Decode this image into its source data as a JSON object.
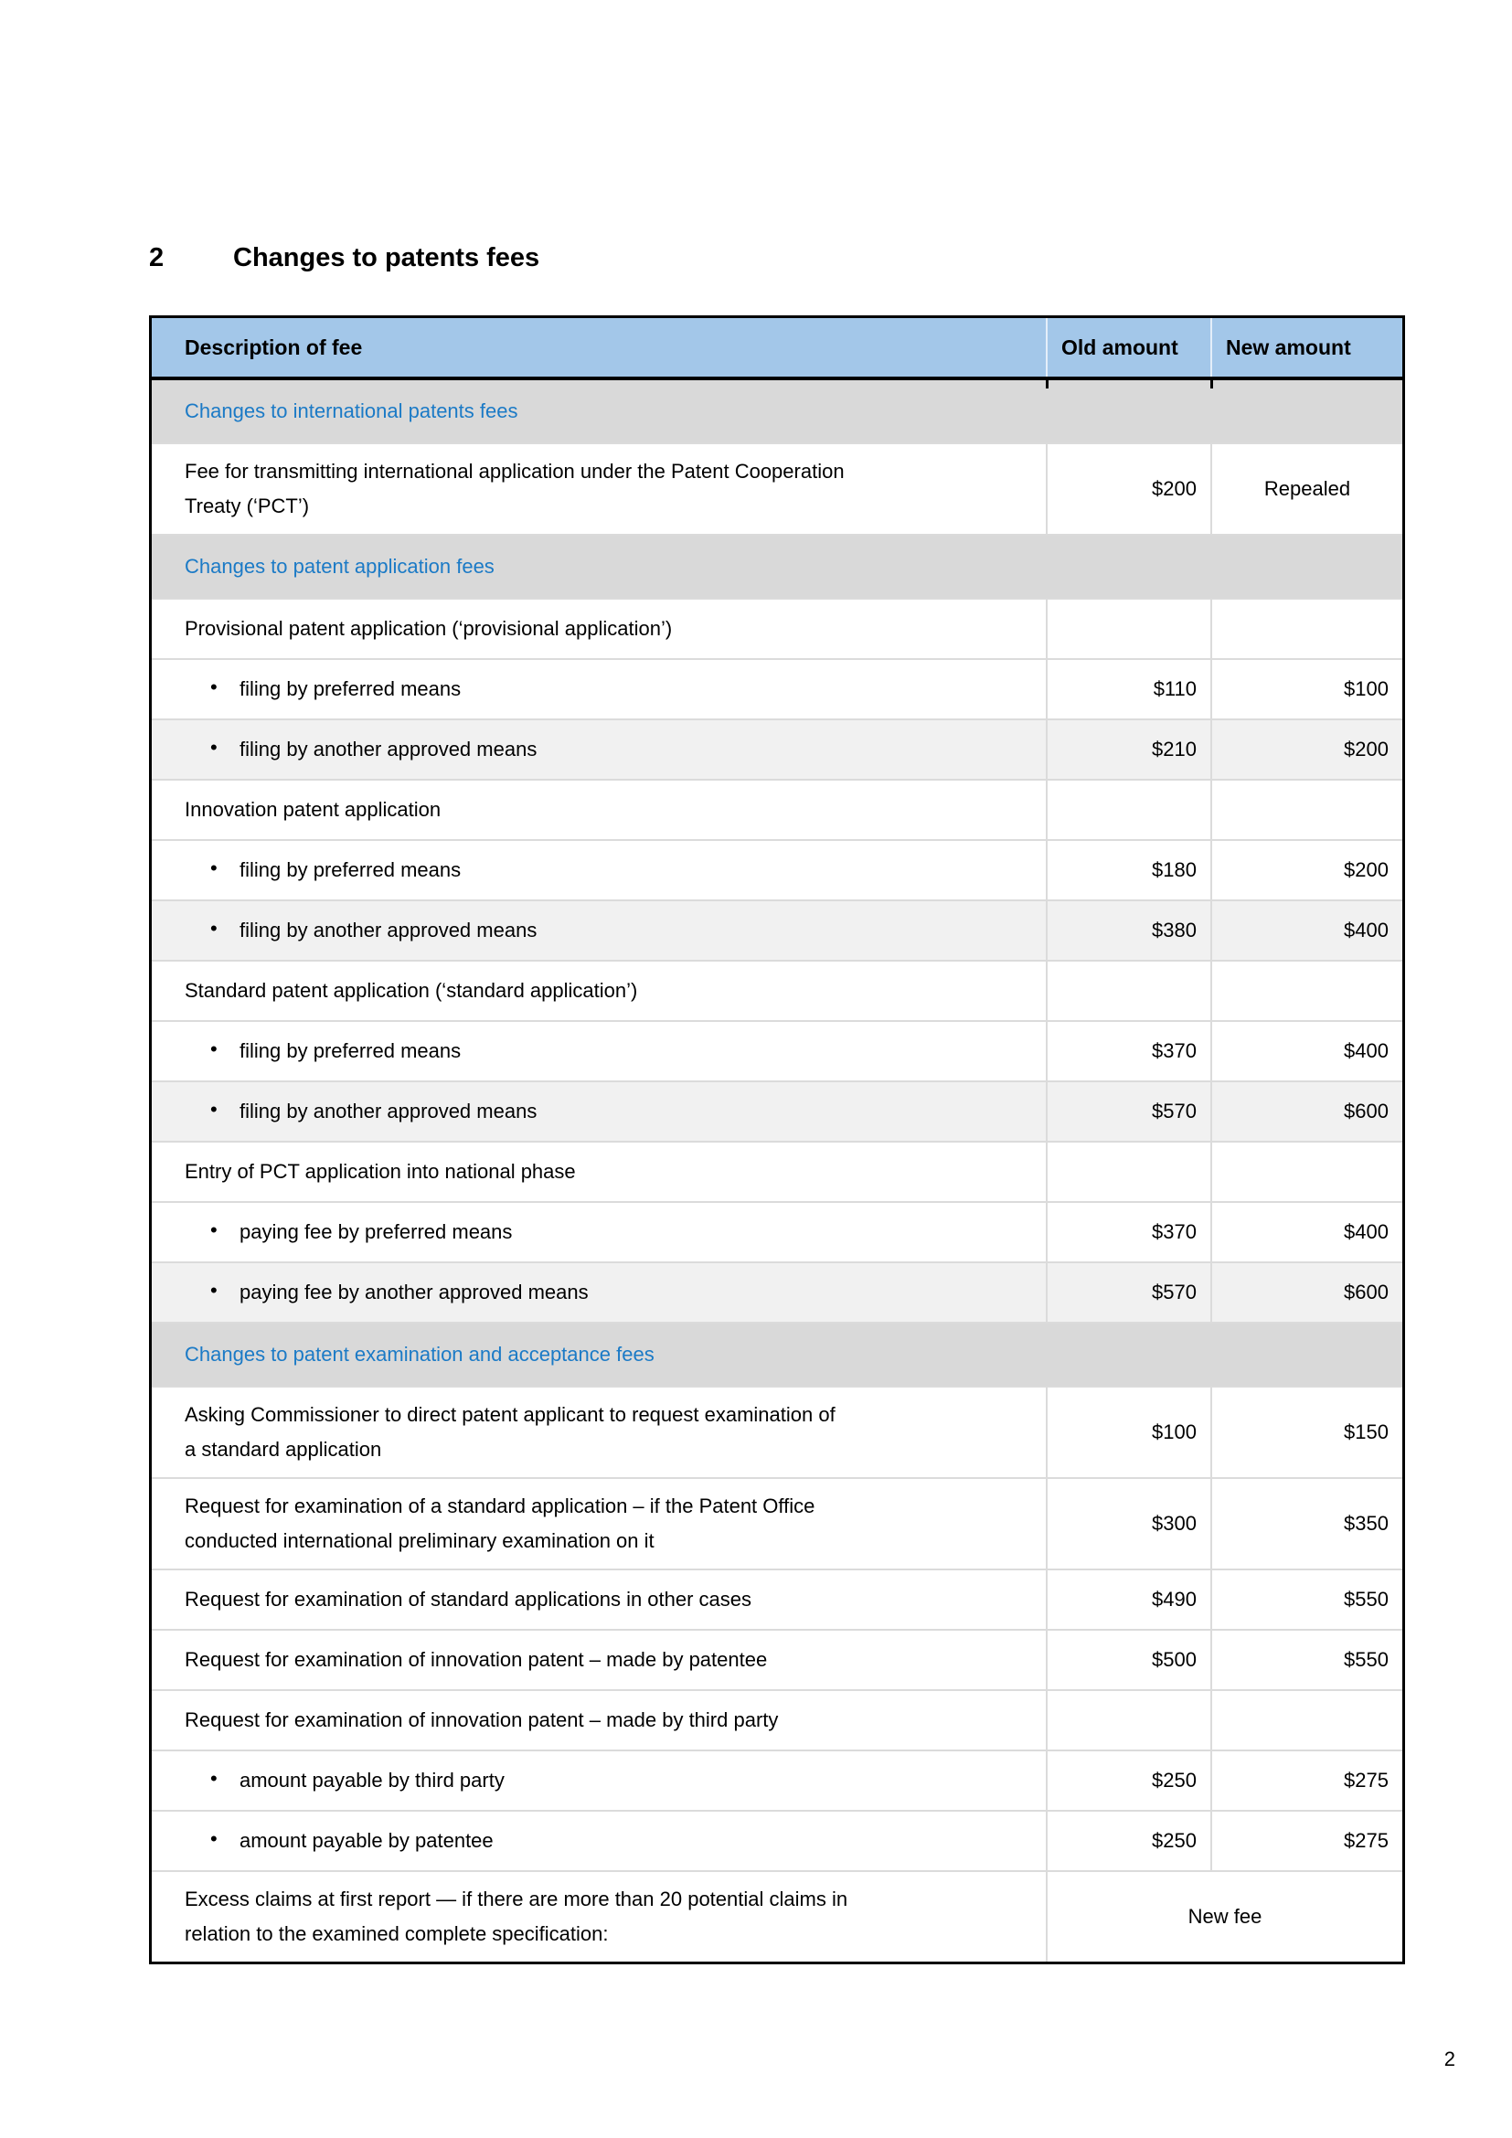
{
  "page": {
    "number": "2"
  },
  "heading": {
    "number": "2",
    "title": "Changes to patents fees"
  },
  "table": {
    "columns": [
      "Description of fee",
      "Old amount",
      "New amount"
    ],
    "colors": {
      "header_bg": "#A3C7E9",
      "section_bg": "#D9D9D9",
      "section_text": "#1B7AC6",
      "shade_bg": "#F1F1F1",
      "row_line": "#DBDBDB"
    },
    "rows": [
      {
        "type": "section",
        "text": "Changes to international patents fees"
      },
      {
        "type": "item",
        "text": "Fee for transmitting international application under the Patent Cooperation Treaty (‘PCT’)",
        "old": "$200",
        "new": "Repealed",
        "new_align": "center"
      },
      {
        "type": "section",
        "text": "Changes to patent application fees"
      },
      {
        "type": "item",
        "text": "Provisional patent application (‘provisional application’)",
        "old": "",
        "new": ""
      },
      {
        "type": "bullet",
        "text": "filing by preferred means",
        "old": "$110",
        "new": "$100"
      },
      {
        "type": "bullet",
        "text": "filing by another approved means",
        "old": "$210",
        "new": "$200",
        "shade": true
      },
      {
        "type": "item",
        "text": "Innovation patent application",
        "old": "",
        "new": ""
      },
      {
        "type": "bullet",
        "text": "filing by preferred means",
        "old": "$180",
        "new": "$200"
      },
      {
        "type": "bullet",
        "text": "filing by another approved means",
        "old": "$380",
        "new": "$400",
        "shade": true
      },
      {
        "type": "item",
        "text": "Standard patent application (‘standard application’)",
        "old": "",
        "new": ""
      },
      {
        "type": "bullet",
        "text": "filing by preferred means",
        "old": "$370",
        "new": "$400"
      },
      {
        "type": "bullet",
        "text": "filing by another approved means",
        "old": "$570",
        "new": "$600",
        "shade": true
      },
      {
        "type": "item",
        "text": "Entry of PCT application into national phase",
        "old": "",
        "new": ""
      },
      {
        "type": "bullet",
        "text": "paying fee by preferred means",
        "old": "$370",
        "new": "$400"
      },
      {
        "type": "bullet",
        "text": "paying fee by another approved means",
        "old": "$570",
        "new": "$600",
        "shade": true
      },
      {
        "type": "section",
        "text": "Changes to patent examination and acceptance fees"
      },
      {
        "type": "item",
        "text": "Asking Commissioner to direct patent applicant to request examination of a standard application",
        "old": "$100",
        "new": "$150"
      },
      {
        "type": "item",
        "text": "Request for examination of a standard application – if the Patent Office conducted international preliminary examination on it",
        "old": "$300",
        "new": "$350"
      },
      {
        "type": "item",
        "text": "Request for examination of standard applications in other cases",
        "old": "$490",
        "new": "$550"
      },
      {
        "type": "item",
        "text": "Request for examination of innovation patent – made by patentee",
        "old": "$500",
        "new": "$550"
      },
      {
        "type": "item",
        "text": "Request for examination of innovation patent – made by third party",
        "old": "",
        "new": ""
      },
      {
        "type": "bullet",
        "text": "amount payable by third party",
        "old": "$250",
        "new": "$275"
      },
      {
        "type": "bullet",
        "text": "amount payable by patentee",
        "old": "$250",
        "new": "$275"
      },
      {
        "type": "item",
        "text": "Excess claims at first report — if there are more than 20 potential claims in relation to the examined complete specification:",
        "merged": "New fee"
      }
    ]
  }
}
